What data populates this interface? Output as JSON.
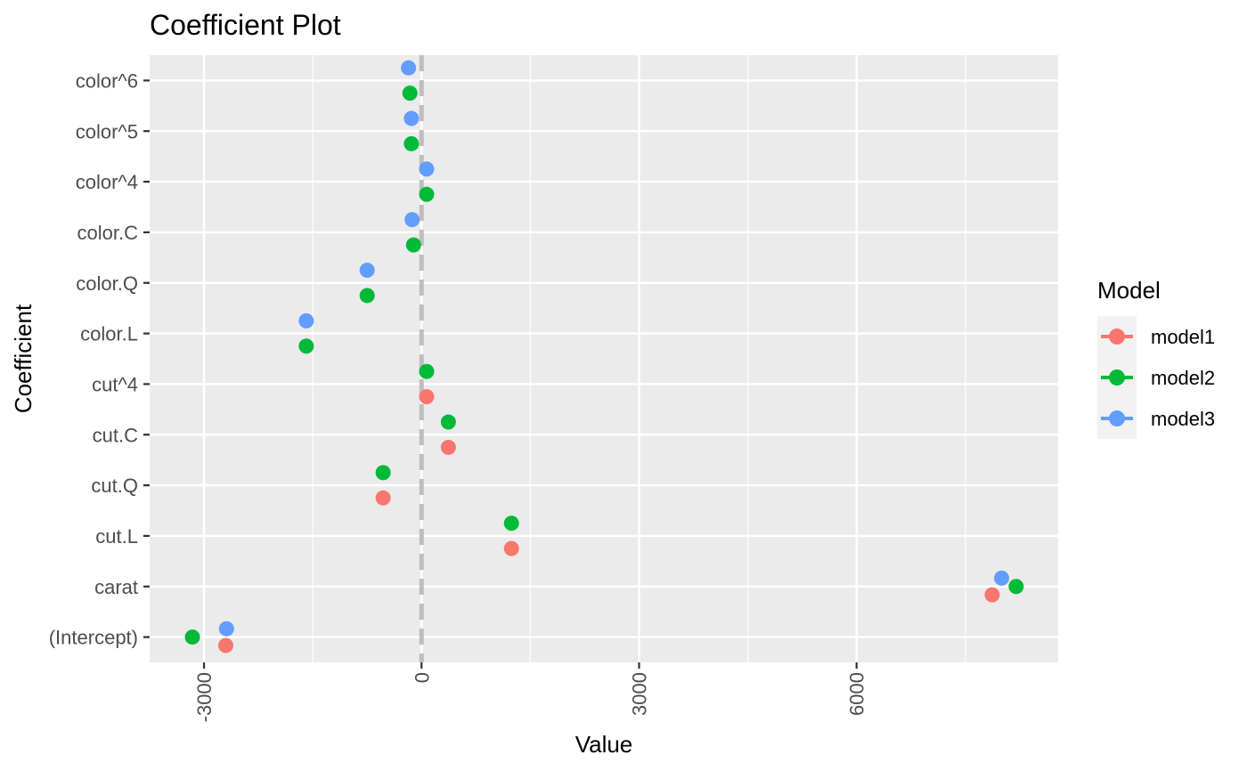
{
  "chart_data": {
    "type": "scatter",
    "title": "Coefficient Plot",
    "xlabel": "Value",
    "ylabel": "Coefficient",
    "xlim": [
      -3750,
      8780
    ],
    "x_ticks": [
      -3000,
      0,
      3000,
      6000
    ],
    "x_tick_labels": [
      "-3000",
      "0",
      "3000",
      "6000"
    ],
    "reference_line": {
      "x": 0,
      "style": "dashed",
      "color": "#bebebe"
    },
    "grid": true,
    "categories": [
      "(Intercept)",
      "carat",
      "cut.L",
      "cut.Q",
      "cut.C",
      "cut^4",
      "color.L",
      "color.Q",
      "color.C",
      "color^4",
      "color^5",
      "color^6"
    ],
    "legend": {
      "title": "Model",
      "placement": "right"
    },
    "series": [
      {
        "name": "model1",
        "color": "#F8766D",
        "values": [
          {
            "category": "(Intercept)",
            "x": -2700
          },
          {
            "category": "carat",
            "x": 7870
          },
          {
            "category": "cut.L",
            "x": 1240
          },
          {
            "category": "cut.Q",
            "x": -530
          },
          {
            "category": "cut.C",
            "x": 370
          },
          {
            "category": "cut^4",
            "x": 70
          }
        ]
      },
      {
        "name": "model2",
        "color": "#00BA38",
        "values": [
          {
            "category": "(Intercept)",
            "x": -3160
          },
          {
            "category": "carat",
            "x": 8200
          },
          {
            "category": "cut.L",
            "x": 1240
          },
          {
            "category": "cut.Q",
            "x": -530
          },
          {
            "category": "cut.C",
            "x": 370
          },
          {
            "category": "cut^4",
            "x": 70
          },
          {
            "category": "color.L",
            "x": -1590
          },
          {
            "category": "color.Q",
            "x": -750
          },
          {
            "category": "color.C",
            "x": -110
          },
          {
            "category": "color^4",
            "x": 70
          },
          {
            "category": "color^5",
            "x": -140
          },
          {
            "category": "color^6",
            "x": -160
          }
        ]
      },
      {
        "name": "model3",
        "color": "#619CFF",
        "values": [
          {
            "category": "(Intercept)",
            "x": -2690
          },
          {
            "category": "carat",
            "x": 8000
          },
          {
            "category": "color.L",
            "x": -1590
          },
          {
            "category": "color.Q",
            "x": -750
          },
          {
            "category": "color.C",
            "x": -130
          },
          {
            "category": "color^4",
            "x": 70
          },
          {
            "category": "color^5",
            "x": -140
          },
          {
            "category": "color^6",
            "x": -180
          }
        ]
      }
    ]
  }
}
